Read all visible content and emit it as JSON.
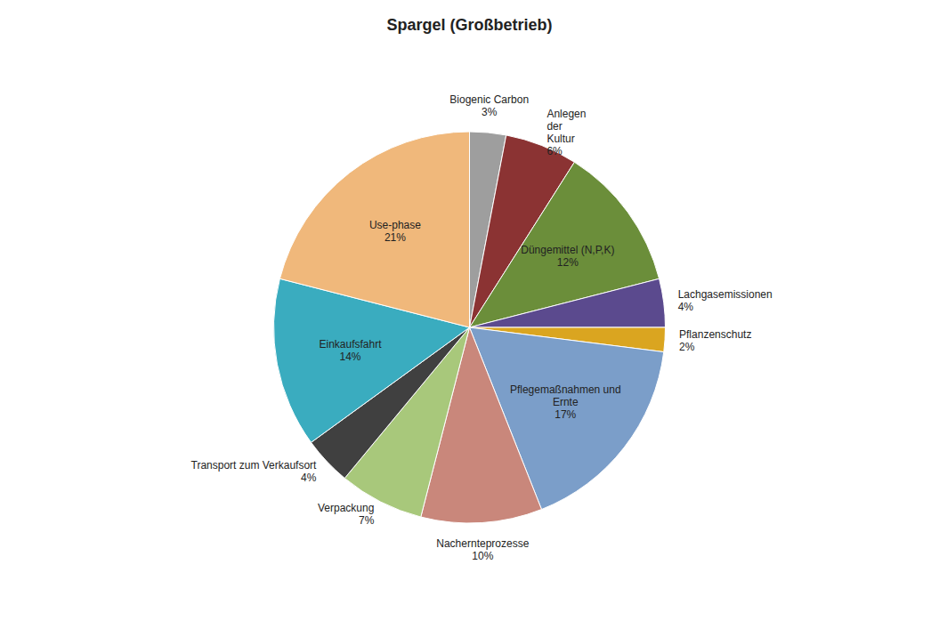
{
  "chart_data": {
    "type": "pie",
    "title": "Spargel (Großbetrieb)",
    "categories": [
      "Biogenic Carbon",
      "Anlegen\nder\nKultur",
      "Düngemittel (N,P,K)",
      "Lachgasemissionen",
      "Pflanzenschutz",
      "Pflegemaßnahmen und\nErnte",
      "Nachernteprozesse",
      "Verpackung",
      "Transport zum Verkaufsort",
      "Einkaufsfahrt",
      "Use-phase"
    ],
    "values": [
      3,
      6,
      12,
      4,
      2,
      17,
      10,
      7,
      4,
      14,
      21
    ],
    "value_labels": [
      "3%",
      "6%",
      "12%",
      "4%",
      "2%",
      "17%",
      "10%",
      "7%",
      "4%",
      "14%",
      "21%"
    ],
    "colors": [
      "#9E9E9E",
      "#8B3333",
      "#6B8E3A",
      "#5B4A8E",
      "#DAA520",
      "#7B9EC9",
      "#C9877B",
      "#A8C87B",
      "#404040",
      "#3AACBF",
      "#F0B87B"
    ],
    "data_labels": true
  }
}
